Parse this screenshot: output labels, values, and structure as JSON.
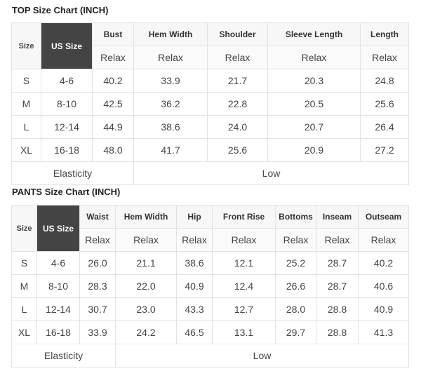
{
  "top": {
    "title": "TOP Size Chart (INCH)",
    "size_label": "Size",
    "us_size_label": "US Size",
    "columns": [
      "Bust",
      "Hem Width",
      "Shoulder",
      "Sleeve Length",
      "Length"
    ],
    "sub_label": "Relax",
    "rows": [
      {
        "size": "S",
        "us": "4-6",
        "values": [
          "40.2",
          "33.9",
          "21.7",
          "20.3",
          "24.8"
        ]
      },
      {
        "size": "M",
        "us": "8-10",
        "values": [
          "42.5",
          "36.2",
          "22.8",
          "20.5",
          "25.6"
        ]
      },
      {
        "size": "L",
        "us": "12-14",
        "values": [
          "44.9",
          "38.6",
          "24.0",
          "20.7",
          "26.4"
        ]
      },
      {
        "size": "XL",
        "us": "16-18",
        "values": [
          "48.0",
          "41.7",
          "25.6",
          "20.9",
          "27.2"
        ]
      }
    ],
    "elasticity_label": "Elasticity",
    "elasticity_value": "Low"
  },
  "pants": {
    "title": "PANTS Size Chart (INCH)",
    "size_label": "Size",
    "us_size_label": "US Size",
    "columns": [
      "Waist",
      "Hem Width",
      "Hip",
      "Front Rise",
      "Bottoms",
      "Inseam",
      "Outseam"
    ],
    "sub_label": "Relax",
    "rows": [
      {
        "size": "S",
        "us": "4-6",
        "values": [
          "26.0",
          "21.1",
          "38.6",
          "12.1",
          "25.2",
          "28.7",
          "40.2"
        ]
      },
      {
        "size": "M",
        "us": "8-10",
        "values": [
          "28.3",
          "22.0",
          "40.9",
          "12.4",
          "26.6",
          "28.7",
          "40.6"
        ]
      },
      {
        "size": "L",
        "us": "12-14",
        "values": [
          "30.7",
          "23.0",
          "43.3",
          "12.7",
          "28.0",
          "28.8",
          "40.9"
        ]
      },
      {
        "size": "XL",
        "us": "16-18",
        "values": [
          "33.9",
          "24.2",
          "46.5",
          "13.1",
          "29.7",
          "28.8",
          "41.3"
        ]
      }
    ],
    "elasticity_label": "Elasticity",
    "elasticity_value": "Low"
  }
}
